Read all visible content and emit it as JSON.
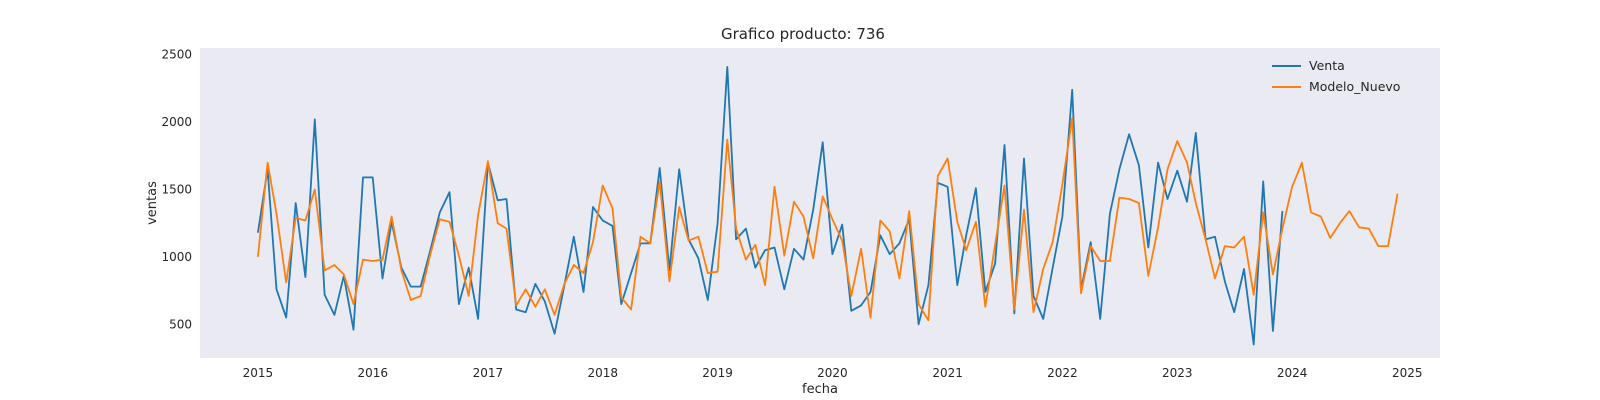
{
  "chart_data": {
    "type": "line",
    "title": "Grafico producto: 736",
    "xlabel": "fecha",
    "ylabel": "ventas",
    "xlim": [
      "2014-07-01",
      "2025-04-15"
    ],
    "ylim": [
      250,
      2550
    ],
    "x_ticks": [
      "2015",
      "2016",
      "2017",
      "2018",
      "2019",
      "2020",
      "2021",
      "2022",
      "2023",
      "2024",
      "2025"
    ],
    "y_ticks": [
      500,
      1000,
      1500,
      2000,
      2500
    ],
    "grid": false,
    "legend_position": "top-right",
    "background": "#eaeaf2",
    "series": [
      {
        "name": "Venta",
        "color": "#1f77b4",
        "start": "2015-01",
        "values": [
          1180,
          1650,
          760,
          550,
          1400,
          850,
          2020,
          720,
          570,
          860,
          460,
          1590,
          1590,
          840,
          1260,
          920,
          780,
          780,
          1040,
          1330,
          1480,
          650,
          920,
          540,
          1700,
          1420,
          1430,
          610,
          590,
          800,
          670,
          430,
          790,
          1150,
          740,
          1370,
          1270,
          1230,
          650,
          880,
          1100,
          1100,
          1660,
          900,
          1650,
          1130,
          990,
          680,
          1250,
          2410,
          1130,
          1210,
          920,
          1050,
          1070,
          760,
          1060,
          980,
          1350,
          1850,
          1020,
          1240,
          600,
          640,
          740,
          1160,
          1020,
          1100,
          1280,
          500,
          790,
          1550,
          1520,
          790,
          1160,
          1510,
          740,
          950,
          1830,
          580,
          1730,
          710,
          540,
          920,
          1300,
          2240,
          760,
          1110,
          540,
          1320,
          1650,
          1910,
          1680,
          1070,
          1700,
          1430,
          1640,
          1410,
          1920,
          1130,
          1150,
          820,
          590,
          910,
          350,
          1560,
          450,
          1340
        ]
      },
      {
        "name": "Modelo_Nuevo",
        "color": "#ff7f0e",
        "start": "2015-01",
        "values": [
          1000,
          1700,
          1320,
          810,
          1290,
          1270,
          1500,
          900,
          940,
          870,
          650,
          980,
          970,
          980,
          1300,
          900,
          680,
          710,
          1010,
          1280,
          1260,
          1010,
          710,
          1310,
          1710,
          1250,
          1210,
          640,
          760,
          630,
          760,
          570,
          800,
          940,
          880,
          1110,
          1530,
          1360,
          700,
          610,
          1150,
          1100,
          1560,
          820,
          1370,
          1120,
          1150,
          880,
          890,
          1870,
          1210,
          980,
          1090,
          790,
          1520,
          1010,
          1410,
          1300,
          990,
          1450,
          1280,
          1120,
          710,
          1060,
          550,
          1270,
          1190,
          840,
          1340,
          650,
          530,
          1600,
          1730,
          1260,
          1050,
          1260,
          630,
          1090,
          1530,
          610,
          1350,
          590,
          910,
          1110,
          1540,
          2030,
          730,
          1080,
          970,
          970,
          1440,
          1430,
          1400,
          860,
          1220,
          1650,
          1860,
          1700,
          1400,
          1130,
          840,
          1080,
          1070,
          1150,
          720,
          1330,
          870,
          1210,
          1520,
          1700,
          1330,
          1300,
          1140,
          1250,
          1340,
          1220,
          1210,
          1080,
          1080,
          1470
        ]
      }
    ]
  }
}
